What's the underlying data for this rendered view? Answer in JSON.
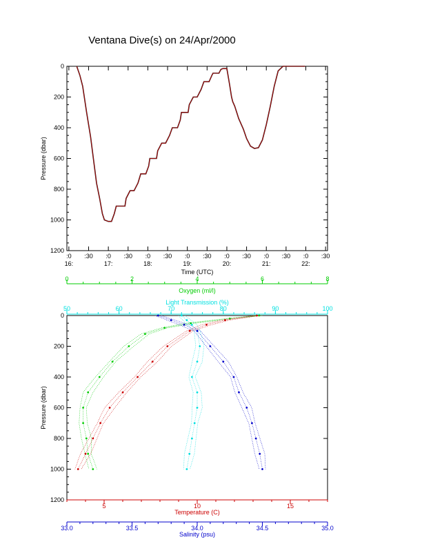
{
  "title": "Ventana Dive(s) on 24/Apr/2000",
  "colors": {
    "pressure_line": "#c00000",
    "oxygen": "#00cc00",
    "light_transmission": "#00e0e0",
    "temperature": "#cc0000",
    "salinity": "#0000cc",
    "axis": "#000000"
  },
  "chart_data": [
    {
      "type": "line",
      "ylabel": "Pressure (dbar)",
      "xlabel": "Time (UTC)",
      "ylim": [
        1200,
        0
      ],
      "y_ticks": [
        "0",
        "200",
        "400",
        "600",
        "800",
        "1000",
        "1200"
      ],
      "x_tick_labels": [
        {
          "top": ":0",
          "bottom": "16:"
        },
        {
          "top": ":30",
          "bottom": ""
        },
        {
          "top": ":0",
          "bottom": "17:"
        },
        {
          "top": ":30",
          "bottom": ""
        },
        {
          "top": ":0",
          "bottom": "18:"
        },
        {
          "top": ":30",
          "bottom": ""
        },
        {
          "top": ":0",
          "bottom": "19:"
        },
        {
          "top": ":30",
          "bottom": ""
        },
        {
          "top": ":0",
          "bottom": "20:"
        },
        {
          "top": ":30",
          "bottom": ""
        },
        {
          "top": ":0",
          "bottom": "21:"
        },
        {
          "top": ":30",
          "bottom": ""
        },
        {
          "top": ":0",
          "bottom": "22:"
        },
        {
          "top": ":30",
          "bottom": ""
        }
      ],
      "x_hours_range": [
        15.95,
        22.55
      ],
      "series": [
        {
          "x_hours": [
            16.2,
            16.28,
            16.35,
            16.45,
            16.55,
            16.62,
            16.7,
            16.78,
            16.85,
            16.9,
            17.0,
            17.08,
            17.15,
            17.2,
            17.35,
            17.42,
            17.45,
            17.55,
            17.62,
            17.65,
            17.75,
            17.82,
            17.85,
            17.95,
            18.02,
            18.05,
            18.15,
            18.22,
            18.25,
            18.35,
            18.42,
            18.45,
            18.55,
            18.62,
            18.65,
            18.75,
            18.82,
            18.85,
            18.95,
            19.02,
            19.05,
            19.15,
            19.22,
            19.25,
            19.35,
            19.42,
            19.45,
            19.55,
            19.62,
            19.65,
            19.75,
            19.8,
            19.85,
            19.9,
            19.97,
            20.0,
            20.07,
            20.12,
            20.15,
            20.2,
            20.25,
            20.3,
            20.42,
            20.5,
            20.6,
            20.7,
            20.8,
            20.9,
            21.0,
            21.1,
            21.2,
            21.3,
            21.42,
            21.5,
            21.6,
            21.7,
            21.8,
            21.9,
            21.98
          ],
          "pressure": [
            0,
            60,
            130,
            300,
            460,
            600,
            760,
            860,
            960,
            1000,
            1010,
            1010,
            960,
            910,
            910,
            910,
            860,
            810,
            810,
            810,
            760,
            700,
            700,
            700,
            650,
            600,
            600,
            600,
            550,
            500,
            500,
            500,
            450,
            400,
            400,
            400,
            350,
            300,
            300,
            300,
            250,
            200,
            200,
            200,
            150,
            100,
            100,
            100,
            60,
            45,
            45,
            45,
            20,
            15,
            15,
            15,
            120,
            200,
            230,
            260,
            300,
            340,
            410,
            470,
            520,
            535,
            530,
            480,
            380,
            260,
            130,
            30,
            0,
            0,
            0,
            0,
            0,
            0,
            0
          ]
        }
      ]
    },
    {
      "type": "line",
      "ylabel": "Pressure (dbar)",
      "ylim": [
        1200,
        0
      ],
      "y_ticks": [
        "0",
        "200",
        "400",
        "600",
        "800",
        "1000",
        "1200"
      ],
      "axes": {
        "oxygen": {
          "label": "Oxygen (ml/l)",
          "range": [
            0,
            8
          ],
          "ticks": [
            "0",
            "2",
            "4",
            "6",
            "8"
          ]
        },
        "light_transmission": {
          "label": "Light Transmission (%)",
          "range": [
            50,
            100
          ],
          "ticks": [
            "50",
            "60",
            "70",
            "80",
            "90",
            "100"
          ]
        },
        "temperature": {
          "label": "Temperature (C)",
          "range": [
            3,
            17
          ],
          "ticks": [
            "5",
            "10",
            "15"
          ]
        },
        "salinity": {
          "label": "Salinity (psu)",
          "range": [
            33.0,
            35.0
          ],
          "ticks": [
            "33.0",
            "33.5",
            "34.0",
            "34.5",
            "35.0"
          ]
        }
      },
      "series": [
        {
          "axis": "oxygen",
          "pressure": [
            0,
            20,
            50,
            80,
            120,
            200,
            300,
            400,
            500,
            600,
            700,
            800,
            900,
            1000
          ],
          "values": [
            5.9,
            5.0,
            3.8,
            3.0,
            2.4,
            1.9,
            1.4,
            1.0,
            0.65,
            0.5,
            0.5,
            0.6,
            0.65,
            0.8
          ]
        },
        {
          "axis": "light_transmission",
          "pressure": [
            0,
            30,
            60,
            100,
            200,
            300,
            400,
            500,
            600,
            700,
            800,
            900,
            1000
          ],
          "values": [
            72,
            73,
            74,
            75,
            75.5,
            75,
            74,
            75,
            75,
            74.5,
            74,
            73.5,
            73
          ]
        },
        {
          "axis": "temperature",
          "pressure": [
            0,
            30,
            60,
            100,
            200,
            300,
            400,
            500,
            600,
            700,
            800,
            900,
            1000
          ],
          "values": [
            13.2,
            11.5,
            10.5,
            9.6,
            8.4,
            7.6,
            6.8,
            6.0,
            5.3,
            4.8,
            4.4,
            4.0,
            3.6
          ]
        },
        {
          "axis": "salinity",
          "pressure": [
            0,
            30,
            60,
            100,
            200,
            300,
            400,
            500,
            600,
            700,
            800,
            900,
            1000
          ],
          "values": [
            33.7,
            33.8,
            33.9,
            34.0,
            34.1,
            34.2,
            34.28,
            34.32,
            34.38,
            34.42,
            34.45,
            34.48,
            34.5
          ]
        }
      ]
    }
  ]
}
